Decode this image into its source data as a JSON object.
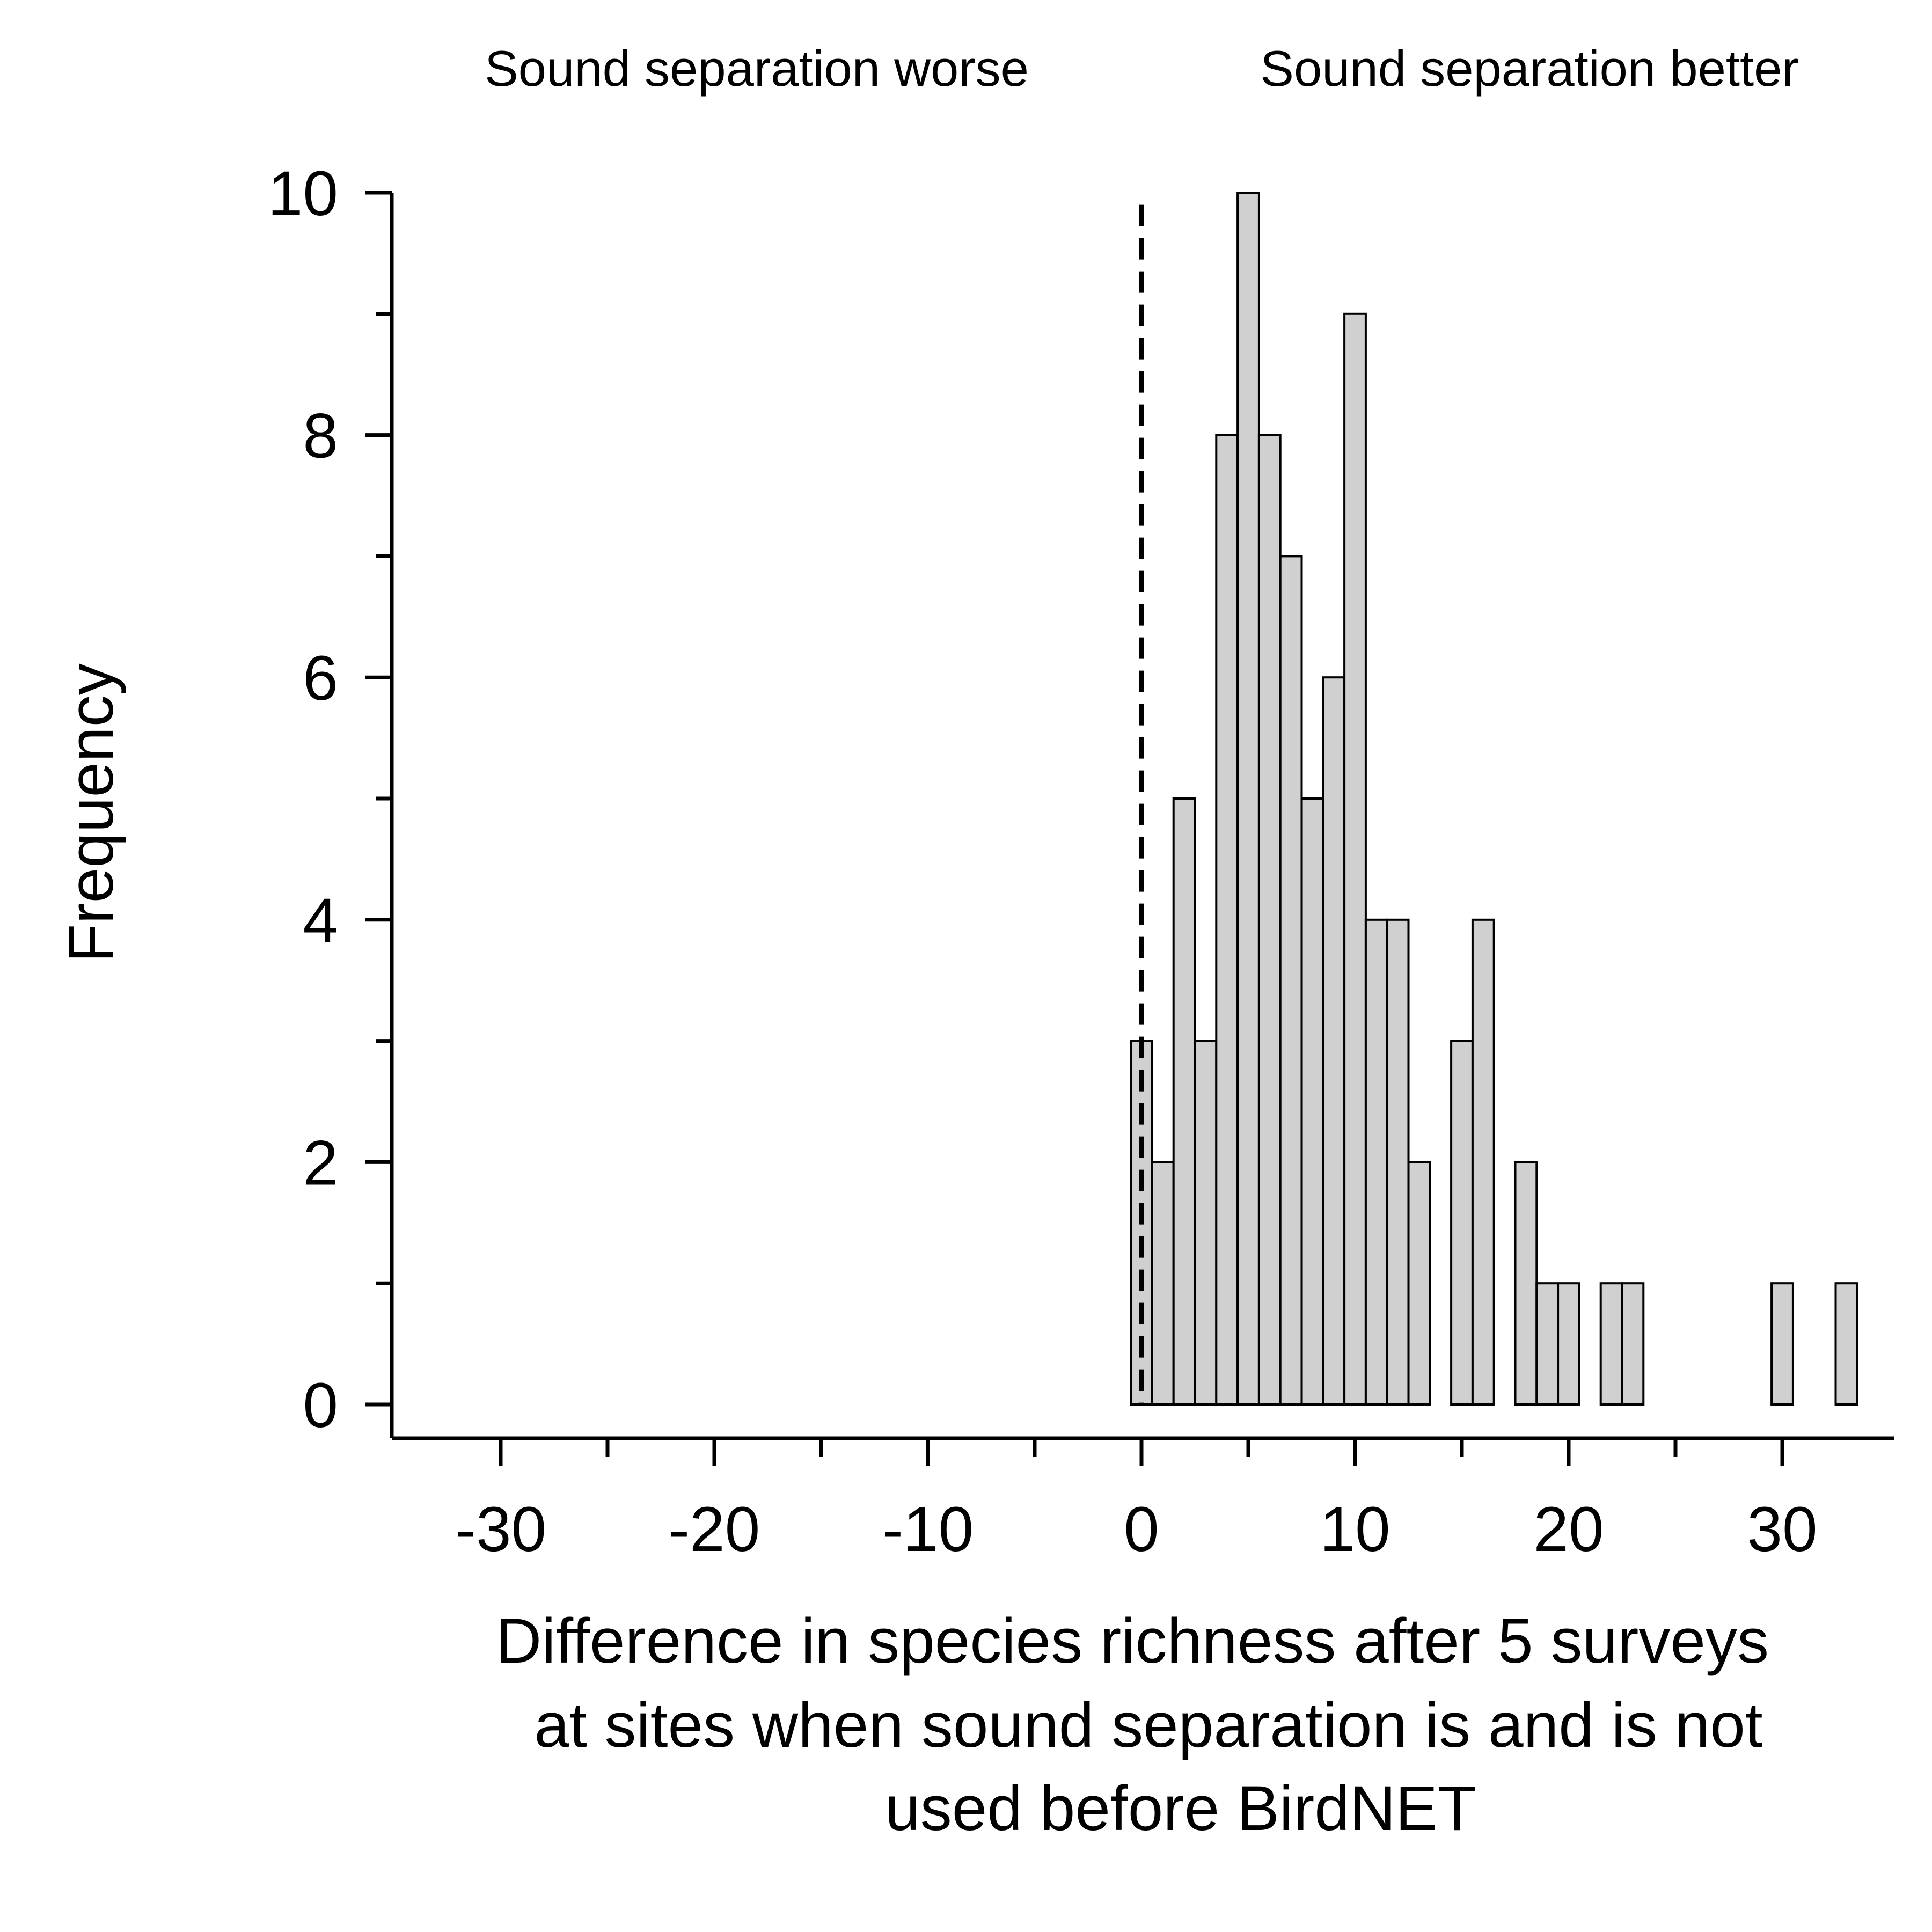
{
  "chart_data": {
    "type": "bar",
    "annotations": {
      "left": "Sound separation worse",
      "right": "Sound separation better"
    },
    "ylabel": "Frequency",
    "xlabel_lines": [
      "Difference in species richness after 5 surveys",
      "at sites when sound separation is and is not",
      "used before BirdNET"
    ],
    "xlim": [
      -35,
      35
    ],
    "ylim": [
      0,
      10
    ],
    "x_ticks": [
      -30,
      -20,
      -10,
      0,
      10,
      20,
      30
    ],
    "x_minor_ticks": [
      -25,
      -15,
      -5,
      5,
      15,
      25
    ],
    "y_ticks": [
      0,
      2,
      4,
      6,
      8,
      10
    ],
    "y_minor_ticks": [
      1,
      3,
      5,
      7,
      9
    ],
    "bin_width": 1,
    "bins": [
      {
        "x": 0,
        "value": 3
      },
      {
        "x": 1,
        "value": 2
      },
      {
        "x": 2,
        "value": 5
      },
      {
        "x": 3,
        "value": 3
      },
      {
        "x": 4,
        "value": 8
      },
      {
        "x": 5,
        "value": 10
      },
      {
        "x": 6,
        "value": 8
      },
      {
        "x": 7,
        "value": 7
      },
      {
        "x": 8,
        "value": 5
      },
      {
        "x": 9,
        "value": 6
      },
      {
        "x": 10,
        "value": 9
      },
      {
        "x": 11,
        "value": 4
      },
      {
        "x": 12,
        "value": 4
      },
      {
        "x": 13,
        "value": 2
      },
      {
        "x": 15,
        "value": 3
      },
      {
        "x": 16,
        "value": 4
      },
      {
        "x": 18,
        "value": 2
      },
      {
        "x": 19,
        "value": 1
      },
      {
        "x": 20,
        "value": 1
      },
      {
        "x": 22,
        "value": 1
      },
      {
        "x": 23,
        "value": 1
      },
      {
        "x": 30,
        "value": 1
      },
      {
        "x": 33,
        "value": 1
      }
    ],
    "reference_line": {
      "x": 0,
      "style": "dashed"
    },
    "bar_fill": "#d0d0d0",
    "bar_stroke": "#000000",
    "grid": false,
    "legend": "none"
  }
}
